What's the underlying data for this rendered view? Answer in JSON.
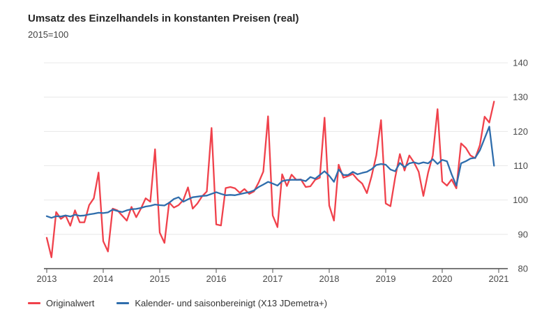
{
  "header": {
    "title": "Umsatz des Einzelhandels in konstanten Preisen (real)",
    "subtitle": "2015=100"
  },
  "legend": {
    "items": [
      {
        "label": "Originalwert"
      },
      {
        "label": "Kalender- und saisonbereinigt (X13 JDemetra+)"
      }
    ]
  },
  "chart_data": {
    "type": "line",
    "title": "Umsatz des Einzelhandels in konstanten Preisen (real)",
    "subtitle": "2015=100",
    "x_axis": {
      "unit": "month",
      "start": "2013-01",
      "end": "2020-12",
      "year_ticks": [
        2013,
        2014,
        2015,
        2016,
        2017,
        2018,
        2019,
        2020,
        2021
      ]
    },
    "y_axis": {
      "range": [
        80,
        140
      ],
      "ticks": [
        80,
        90,
        100,
        110,
        120,
        130,
        140
      ],
      "label_side": "right"
    },
    "grid": true,
    "legend_position": "bottom-left",
    "axis_color": "#4d4d4d",
    "grid_color": "#e8e8e8",
    "tick_label_color": "#4a4a4a",
    "series": [
      {
        "name": "Originalwert",
        "color": "#f0414b",
        "values": [
          89.0,
          83.3,
          96.5,
          94.5,
          95.5,
          92.5,
          97.0,
          93.5,
          93.5,
          98.5,
          100.5,
          108.0,
          88.0,
          85.0,
          97.5,
          97.0,
          95.5,
          94.0,
          98.0,
          95.0,
          97.5,
          100.5,
          99.5,
          114.8,
          90.5,
          87.5,
          99.3,
          97.8,
          98.5,
          100.0,
          103.7,
          97.5,
          99.0,
          101.1,
          102.5,
          121.0,
          92.9,
          92.6,
          103.5,
          103.8,
          103.4,
          102.1,
          103.2,
          101.8,
          102.5,
          105.1,
          108.3,
          124.4,
          95.5,
          92.1,
          107.5,
          104.1,
          107.4,
          105.9,
          106.0,
          103.8,
          104.0,
          105.9,
          106.5,
          124.0,
          98.4,
          94.0,
          110.3,
          106.5,
          107.0,
          107.6,
          106.0,
          104.8,
          102.0,
          107.0,
          113.0,
          123.3,
          99.0,
          98.2,
          106.5,
          113.4,
          108.6,
          113.0,
          111.0,
          108.2,
          101.2,
          108.0,
          113.0,
          126.5,
          105.4,
          104.2,
          106.0,
          103.4,
          116.5,
          115.2,
          113.0,
          112.2,
          116.0,
          124.3,
          122.6,
          128.7
        ]
      },
      {
        "name": "Kalender- und saisonbereinigt (X13 JDemetra+)",
        "color": "#2f6dac",
        "values": [
          95.3,
          94.8,
          95.3,
          95.2,
          95.5,
          95.2,
          95.7,
          95.4,
          95.5,
          95.8,
          96.0,
          96.3,
          96.2,
          96.4,
          97.2,
          96.8,
          96.5,
          97.0,
          97.3,
          97.4,
          97.7,
          98.1,
          98.3,
          98.7,
          98.5,
          98.4,
          99.2,
          100.3,
          100.8,
          99.5,
          100.2,
          100.8,
          101.0,
          101.2,
          101.3,
          101.8,
          102.3,
          101.8,
          101.4,
          101.5,
          101.4,
          101.7,
          102.0,
          102.3,
          102.8,
          103.8,
          104.5,
          105.3,
          104.8,
          104.2,
          105.5,
          105.8,
          105.9,
          105.9,
          105.9,
          105.5,
          106.7,
          106.2,
          107.3,
          108.4,
          107.1,
          105.3,
          108.9,
          107.3,
          107.3,
          108.2,
          107.5,
          107.9,
          108.2,
          109.0,
          110.2,
          110.5,
          110.3,
          108.9,
          108.4,
          110.8,
          109.6,
          110.7,
          111.0,
          110.6,
          111.0,
          110.7,
          111.9,
          110.5,
          111.7,
          111.3,
          107.5,
          104.2,
          110.7,
          111.3,
          112.1,
          112.3,
          114.5,
          118.0,
          121.4,
          110.0
        ]
      }
    ]
  }
}
